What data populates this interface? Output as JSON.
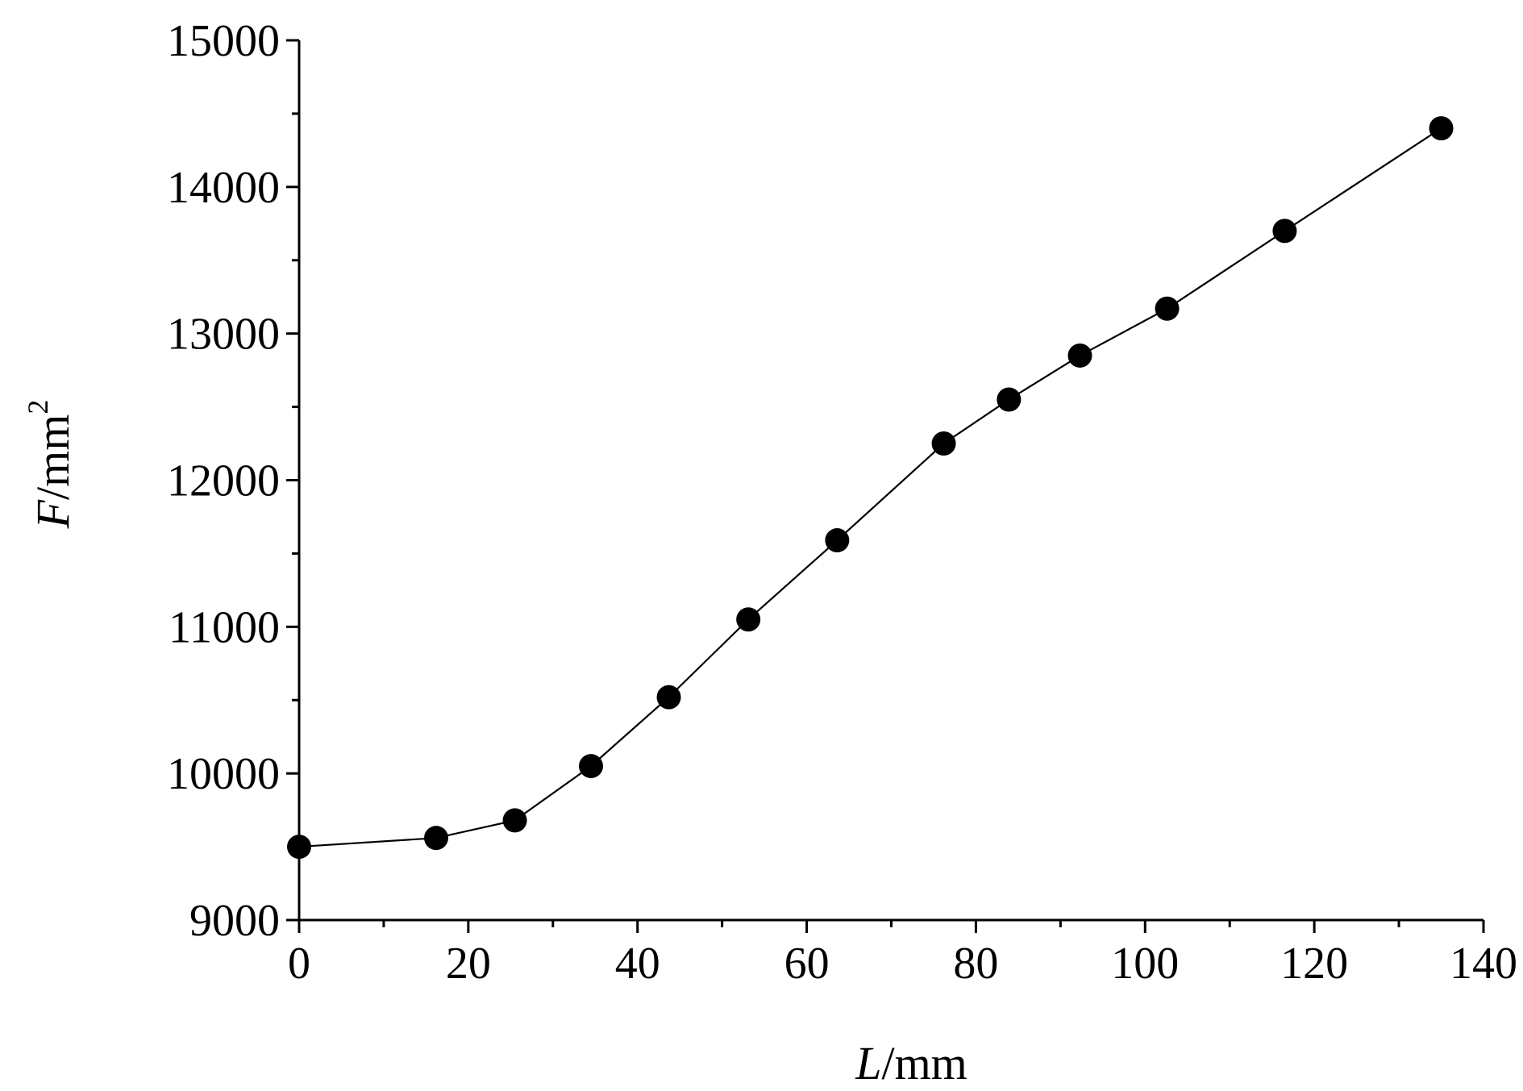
{
  "chart_data": {
    "type": "line",
    "title": "",
    "xlabel": {
      "var": "L",
      "unit": "/mm"
    },
    "ylabel": {
      "var": "F",
      "unit": "/mm",
      "sup": "2"
    },
    "xlim": [
      0,
      140
    ],
    "ylim": [
      9000,
      15000
    ],
    "x_ticks": [
      0,
      20,
      40,
      60,
      80,
      100,
      120,
      140
    ],
    "x_minor_ticks": [
      10,
      30,
      50,
      70,
      90,
      110,
      130
    ],
    "y_ticks": [
      9000,
      10000,
      11000,
      12000,
      13000,
      14000,
      15000
    ],
    "y_minor_ticks": [
      9500,
      10500,
      11500,
      12500,
      13500,
      14500
    ],
    "grid": false,
    "legend": "none",
    "marker": "filled-circle",
    "color": "#000000",
    "series": [
      {
        "x": [
          0,
          16.2,
          25.5,
          34.5,
          43.7,
          53.1,
          63.6,
          76.2,
          83.9,
          92.3,
          102.6,
          116.5,
          135
        ],
        "y": [
          9500,
          9560,
          9680,
          10050,
          10520,
          11050,
          11590,
          12250,
          12550,
          12850,
          13170,
          13700,
          14400
        ]
      }
    ]
  }
}
